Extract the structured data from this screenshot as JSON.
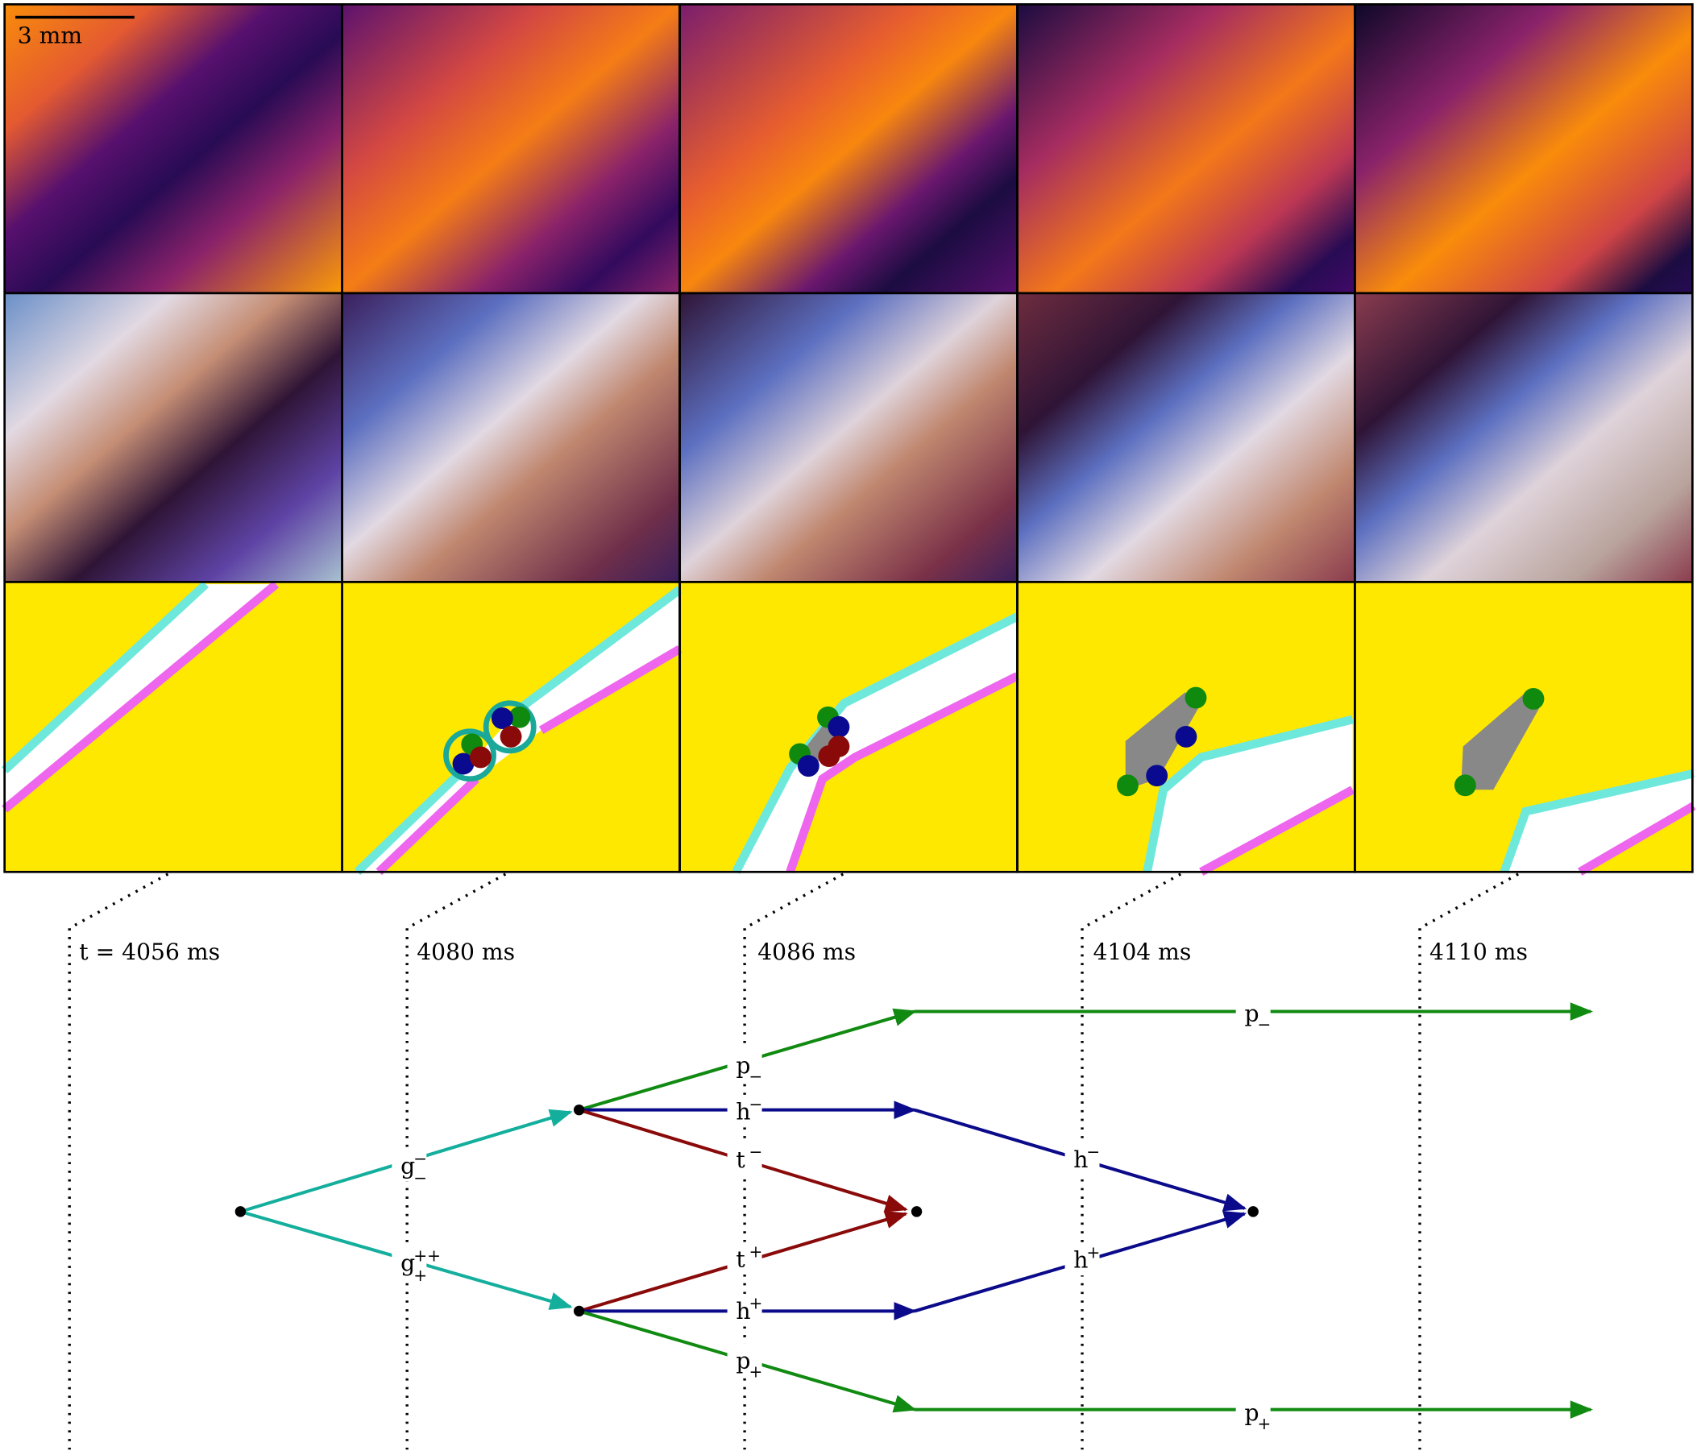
{
  "scale_bar": "3 mm",
  "times": [
    "t = 4056 ms",
    "4080 ms",
    "4086 ms",
    "4104 ms",
    "4110 ms"
  ],
  "graph": {
    "edges": [
      {
        "label": {
          "base": "g",
          "sup": "−",
          "sub": "−"
        }
      },
      {
        "label": {
          "base": "g",
          "sup": "++",
          "sub": "+"
        }
      },
      {
        "label": {
          "base": "p",
          "sub": "−"
        }
      },
      {
        "label": {
          "base": "h",
          "sup": "−"
        }
      },
      {
        "label": {
          "base": "t",
          "sup": "−"
        }
      },
      {
        "label": {
          "base": "t",
          "sup": "+"
        }
      },
      {
        "label": {
          "base": "h",
          "sup": "+"
        }
      },
      {
        "label": {
          "base": "p",
          "sub": "+"
        }
      },
      {
        "label": {
          "base": "p",
          "sub": "−"
        }
      },
      {
        "label": {
          "base": "h",
          "sup": "−"
        }
      },
      {
        "label": {
          "base": "h",
          "sup": "+"
        }
      },
      {
        "label": {
          "base": "p",
          "sub": "+"
        }
      }
    ]
  }
}
